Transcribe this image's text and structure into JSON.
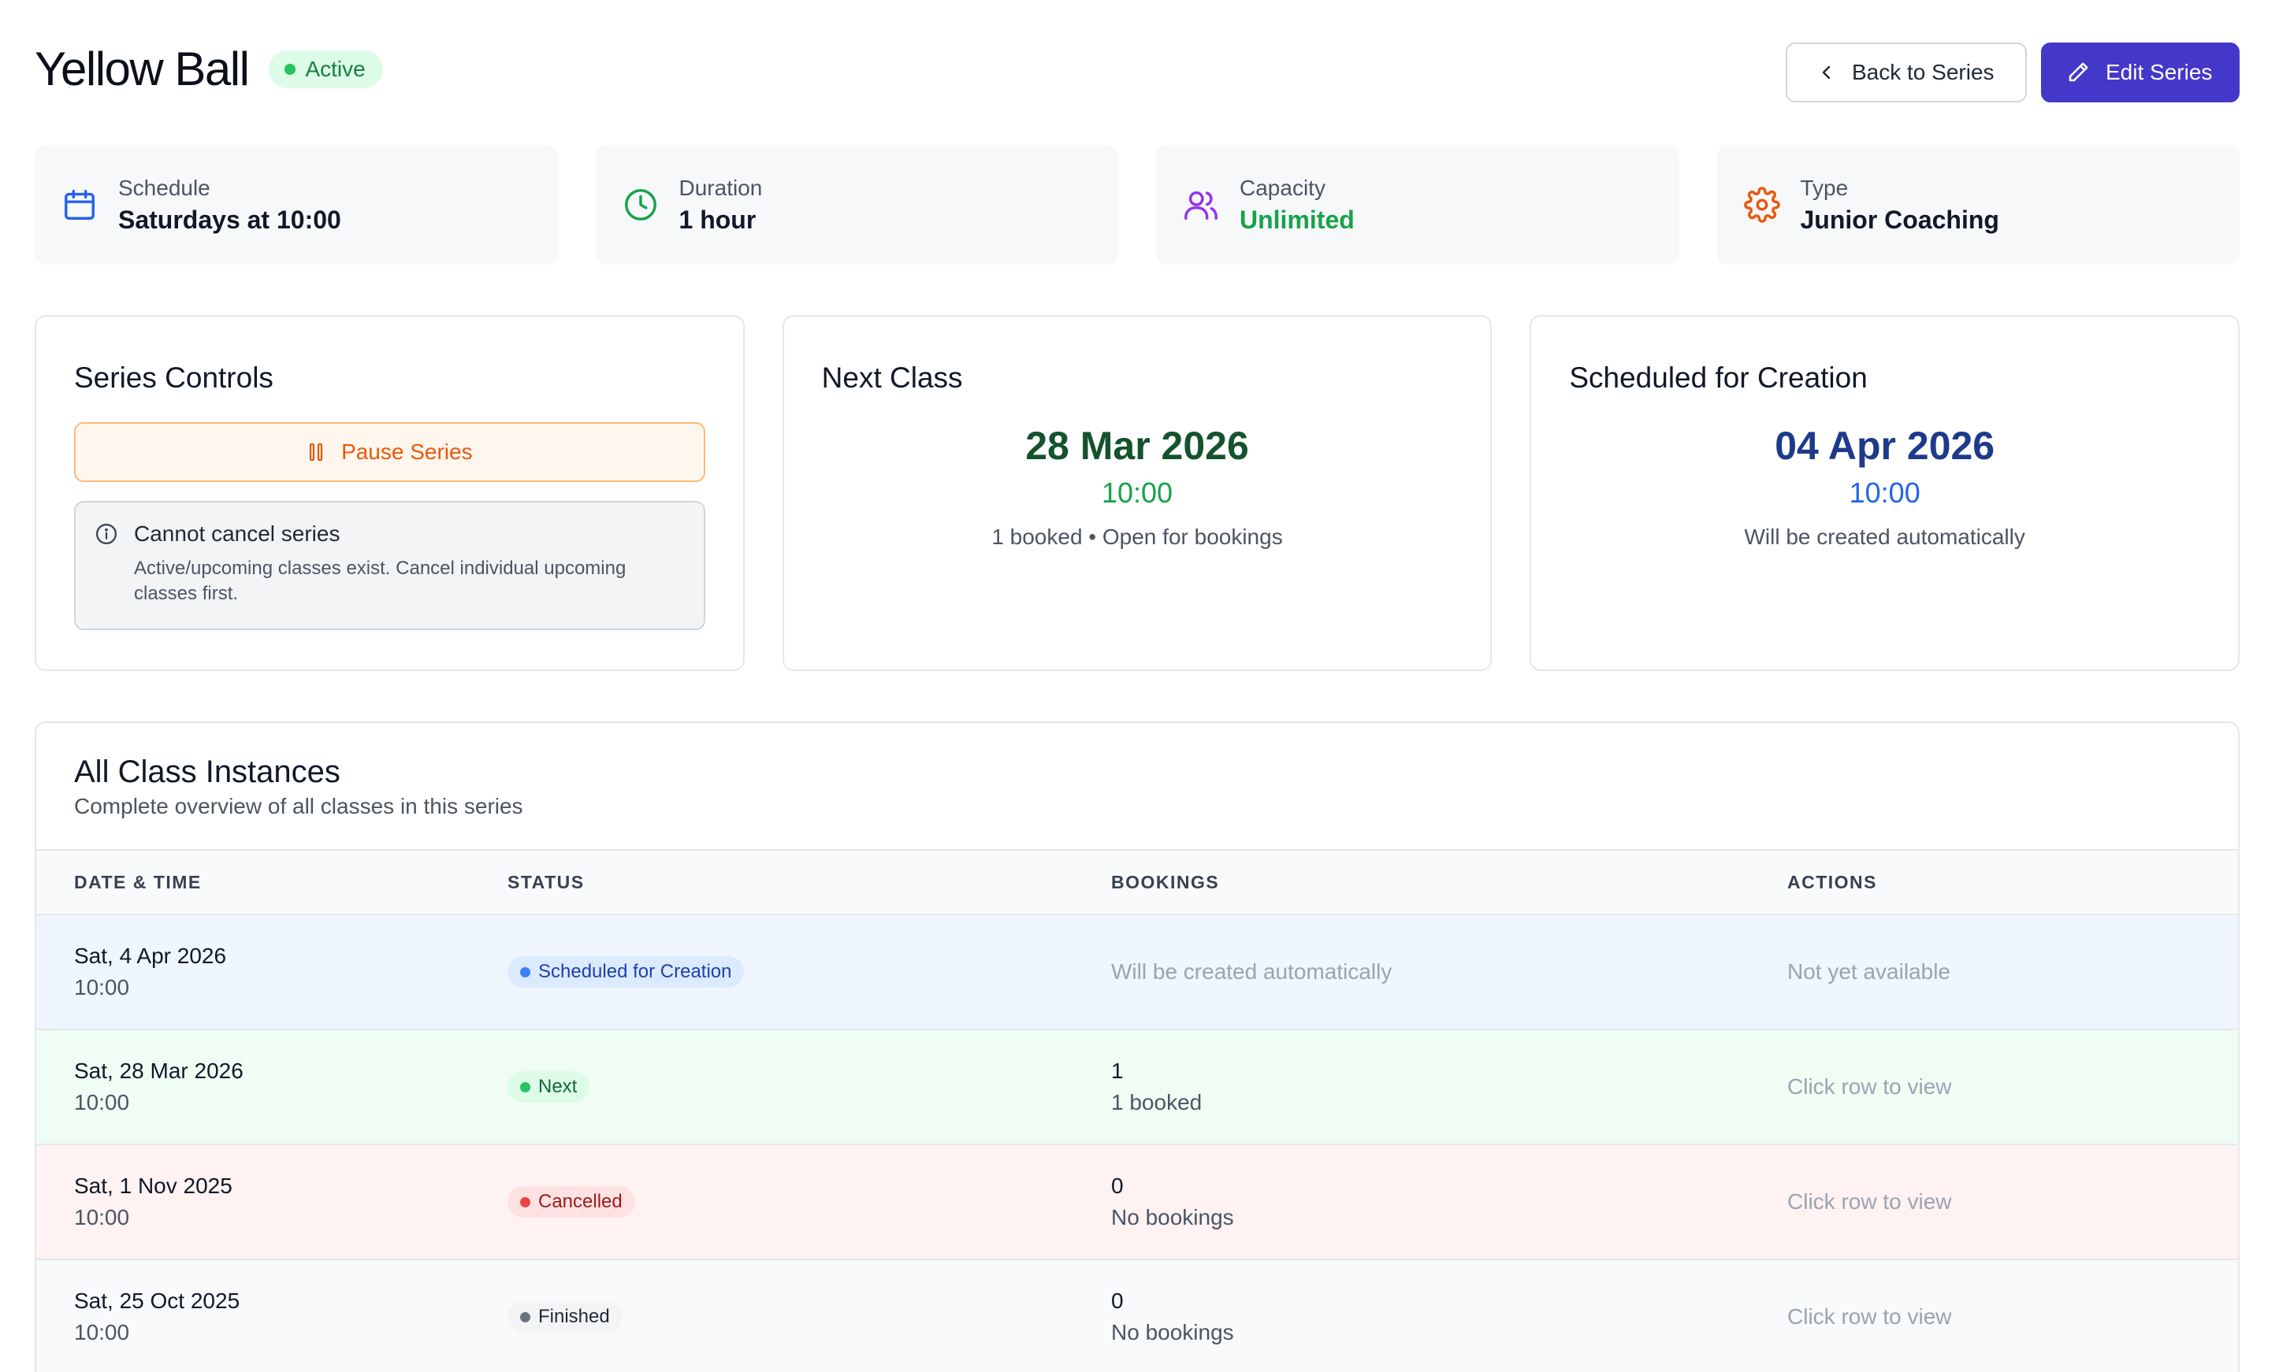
{
  "header": {
    "title": "Yellow Ball",
    "status": "Active",
    "back_label": "Back to Series",
    "edit_label": "Edit Series"
  },
  "info_cards": [
    {
      "label": "Schedule",
      "value": "Saturdays at 10:00",
      "icon": "calendar-icon",
      "color": "#2563eb"
    },
    {
      "label": "Duration",
      "value": "1 hour",
      "icon": "clock-icon",
      "color": "#16a34a"
    },
    {
      "label": "Capacity",
      "value": "Unlimited",
      "icon": "users-icon",
      "color": "#9333ea"
    },
    {
      "label": "Type",
      "value": "Junior Coaching",
      "icon": "gear-icon",
      "color": "#ea580c"
    }
  ],
  "controls": {
    "title": "Series Controls",
    "pause_label": "Pause Series",
    "notice_title": "Cannot cancel series",
    "notice_body": "Active/upcoming classes exist. Cancel individual upcoming classes first."
  },
  "next_class": {
    "title": "Next Class",
    "date": "28 Mar 2026",
    "time": "10:00",
    "summary": "1 booked • Open for bookings"
  },
  "scheduled": {
    "title": "Scheduled for Creation",
    "date": "04 Apr 2026",
    "time": "10:00",
    "summary": "Will be created automatically"
  },
  "instances": {
    "title": "All Class Instances",
    "subtitle": "Complete overview of all classes in this series",
    "columns": [
      "DATE & TIME",
      "STATUS",
      "BOOKINGS",
      "ACTIONS"
    ],
    "rows": [
      {
        "date": "Sat, 4 Apr 2026",
        "time": "10:00",
        "status": "Scheduled for Creation",
        "bookings_count": "",
        "bookings_label": "Will be created automatically",
        "action": "Not yet available"
      },
      {
        "date": "Sat, 28 Mar 2026",
        "time": "10:00",
        "status": "Next",
        "bookings_count": "1",
        "bookings_label": "1 booked",
        "action": "Click row to view"
      },
      {
        "date": "Sat, 1 Nov 2025",
        "time": "10:00",
        "status": "Cancelled",
        "bookings_count": "0",
        "bookings_label": "No bookings",
        "action": "Click row to view"
      },
      {
        "date": "Sat, 25 Oct 2025",
        "time": "10:00",
        "status": "Finished",
        "bookings_count": "0",
        "bookings_label": "No bookings",
        "action": "Click row to view"
      }
    ]
  },
  "colors": {
    "primary": "#4338ca",
    "active_green": "#22c55e",
    "pause_orange": "#ea580c"
  }
}
